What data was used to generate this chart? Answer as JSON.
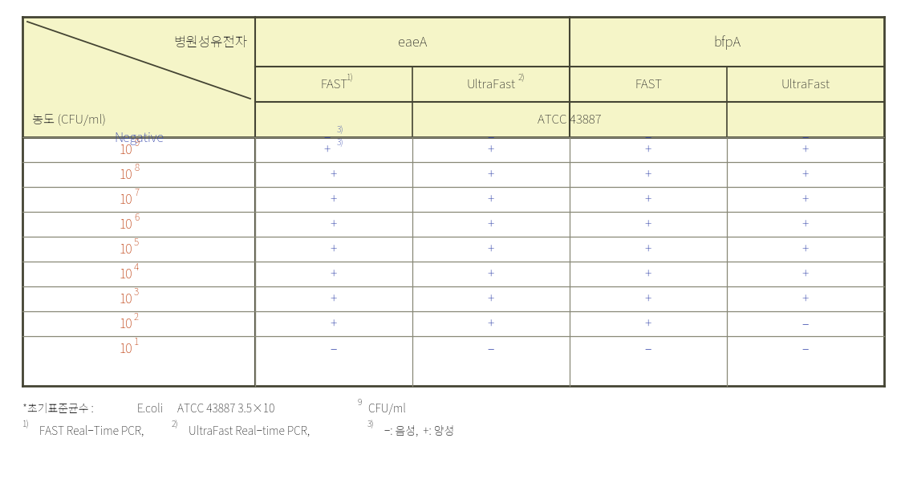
{
  "header_bg": "#f5f5c8",
  "col1_label_top": "병원성유전자",
  "col1_label_bottom": "농도 (CFU/ml)",
  "col2_header": "eaeA",
  "col3_header": "bfpA",
  "atcc_label": "ATCC 43887",
  "conc_exponents": [
    "",
    "9",
    "8",
    "7",
    "6",
    "5",
    "4",
    "3",
    "2",
    "1"
  ],
  "data": [
    [
      "-3)",
      "-",
      "-",
      "-"
    ],
    [
      "+3)",
      "+",
      "+",
      "+"
    ],
    [
      "+",
      "+",
      "+",
      "+"
    ],
    [
      "+",
      "+",
      "+",
      "+"
    ],
    [
      "+",
      "+",
      "+",
      "+"
    ],
    [
      "+",
      "+",
      "+",
      "+"
    ],
    [
      "+",
      "+",
      "+",
      "+"
    ],
    [
      "+",
      "+",
      "+",
      "+"
    ],
    [
      "+",
      "+",
      "+",
      "-"
    ],
    [
      "-",
      "-",
      "-",
      "-"
    ]
  ],
  "plus_color": "#3344aa",
  "minus_color": "#3344aa",
  "conc_color": "#bb3300",
  "negative_color": "#3344aa",
  "thick_line_color": "#444433",
  "header_line_color": "#444433",
  "body_line_color": "#888877",
  "bg_white": "#ffffff",
  "text_color": "#222222"
}
